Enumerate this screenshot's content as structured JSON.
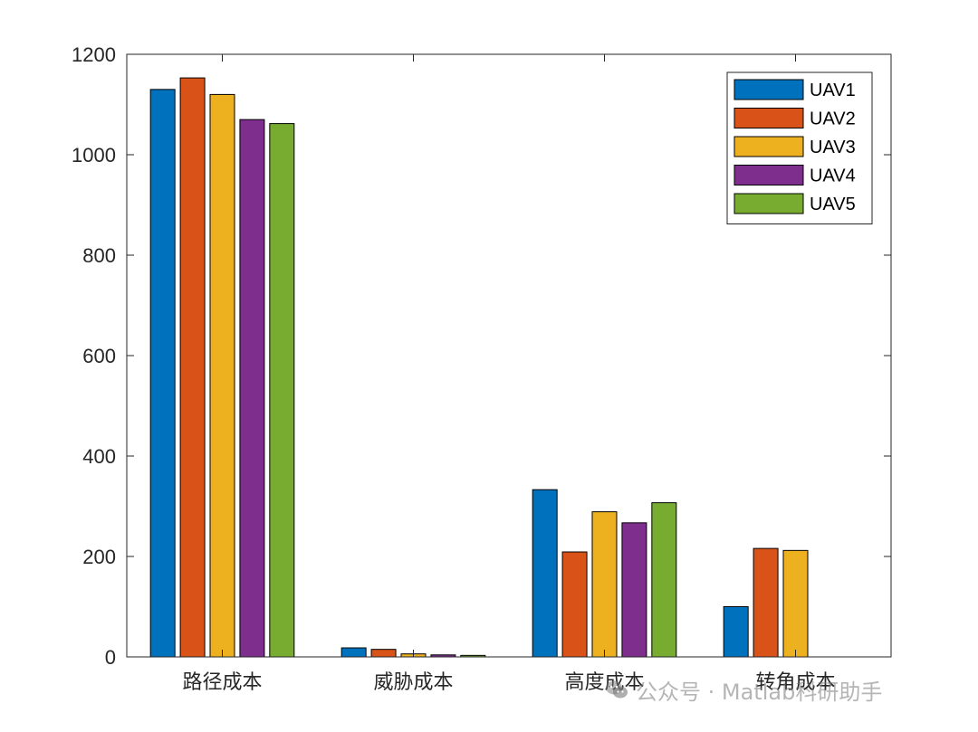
{
  "chart_data": {
    "type": "bar",
    "title": "",
    "xlabel": "",
    "ylabel": "",
    "categories": [
      "路径成本",
      "威胁成本",
      "高度成本",
      "转角成本"
    ],
    "series": [
      {
        "name": "UAV1",
        "color": "#0072BD",
        "values": [
          1130,
          18,
          333,
          100
        ]
      },
      {
        "name": "UAV2",
        "color": "#D95319",
        "values": [
          1153,
          15,
          209,
          216
        ]
      },
      {
        "name": "UAV3",
        "color": "#EDB120",
        "values": [
          1120,
          6,
          289,
          212
        ]
      },
      {
        "name": "UAV4",
        "color": "#7E2F8E",
        "values": [
          1070,
          4,
          267,
          0
        ]
      },
      {
        "name": "UAV5",
        "color": "#77AC30",
        "values": [
          1062,
          3,
          307,
          0
        ]
      }
    ],
    "ylim": [
      0,
      1200
    ],
    "yticks": [
      0,
      200,
      400,
      600,
      800,
      1000,
      1200
    ],
    "grid": false,
    "legend_position": "top-right"
  },
  "watermark": {
    "icon": "wechat-icon",
    "text": "公众号 · Matlab科研助手"
  }
}
